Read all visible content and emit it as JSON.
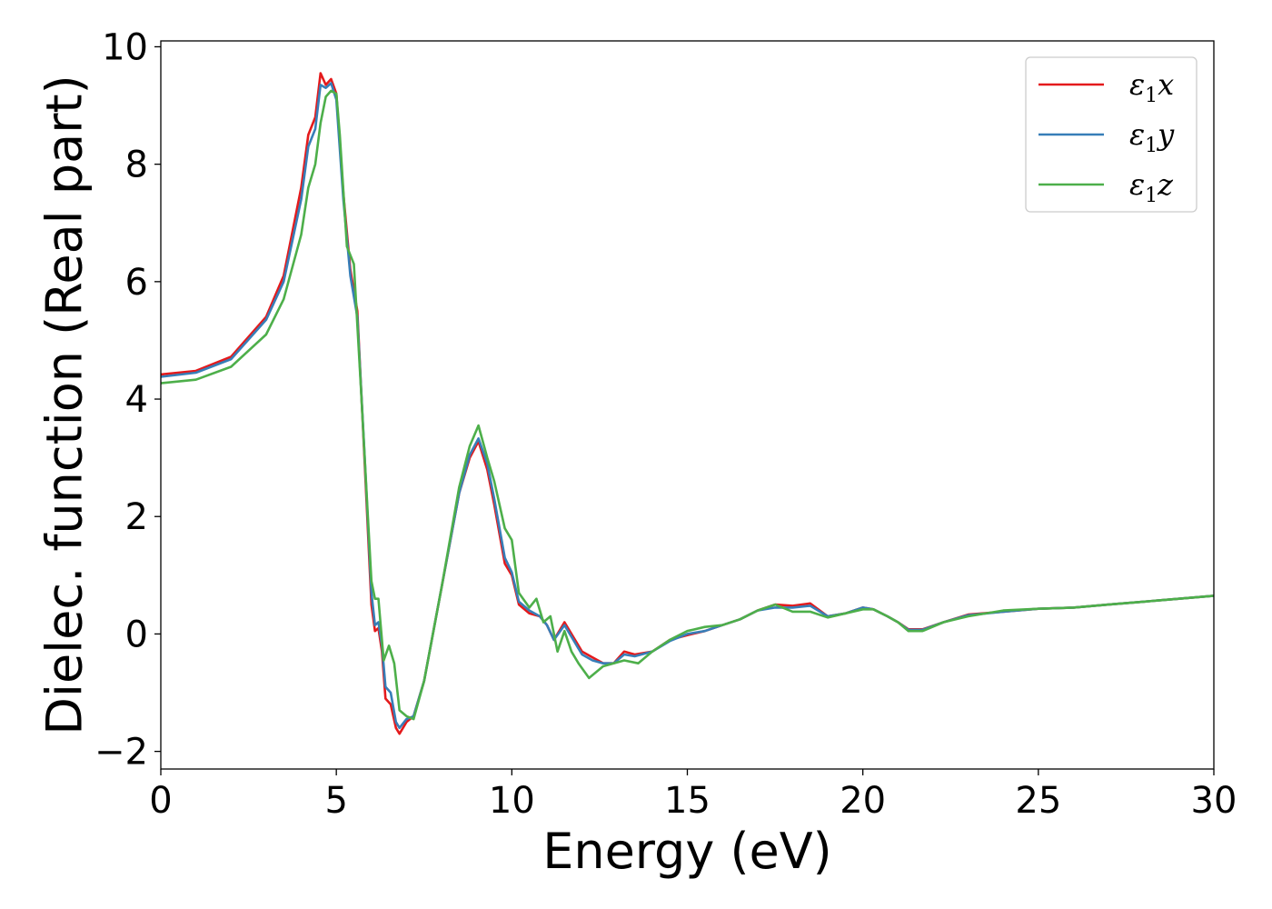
{
  "chart_data": {
    "type": "line",
    "xlabel": "Energy (eV)",
    "ylabel": "Dielec. function (Real part)",
    "xlim": [
      0,
      30
    ],
    "ylim": [
      -2.3,
      10.1
    ],
    "xticks": [
      0,
      5,
      10,
      15,
      20,
      25,
      30
    ],
    "xtick_labels": [
      "0",
      "5",
      "10",
      "15",
      "20",
      "25",
      "30"
    ],
    "yticks": [
      -2,
      0,
      2,
      4,
      6,
      8,
      10
    ],
    "ytick_labels": [
      "−2",
      "0",
      "2",
      "4",
      "6",
      "8",
      "10"
    ],
    "grid": false,
    "legend_position": "top-right",
    "series": [
      {
        "name": "ε1x",
        "name_base": "ε",
        "name_sub": "1",
        "name_suffix": "x",
        "color": "#e41a1c",
        "points": [
          [
            0,
            4.42
          ],
          [
            1,
            4.48
          ],
          [
            2,
            4.72
          ],
          [
            3,
            5.4
          ],
          [
            3.5,
            6.1
          ],
          [
            4,
            7.6
          ],
          [
            4.2,
            8.5
          ],
          [
            4.4,
            8.8
          ],
          [
            4.55,
            9.55
          ],
          [
            4.7,
            9.35
          ],
          [
            4.85,
            9.45
          ],
          [
            5,
            9.2
          ],
          [
            5.2,
            7.5
          ],
          [
            5.4,
            6.2
          ],
          [
            5.6,
            5.5
          ],
          [
            5.8,
            3.0
          ],
          [
            6.0,
            0.5
          ],
          [
            6.1,
            0.05
          ],
          [
            6.2,
            0.1
          ],
          [
            6.3,
            -0.3
          ],
          [
            6.4,
            -1.1
          ],
          [
            6.55,
            -1.2
          ],
          [
            6.7,
            -1.6
          ],
          [
            6.8,
            -1.7
          ],
          [
            7.0,
            -1.5
          ],
          [
            7.2,
            -1.4
          ],
          [
            7.5,
            -0.8
          ],
          [
            8.0,
            0.8
          ],
          [
            8.5,
            2.4
          ],
          [
            8.8,
            3.0
          ],
          [
            9.05,
            3.28
          ],
          [
            9.3,
            2.8
          ],
          [
            9.5,
            2.2
          ],
          [
            9.8,
            1.2
          ],
          [
            10.0,
            1.0
          ],
          [
            10.2,
            0.5
          ],
          [
            10.5,
            0.35
          ],
          [
            10.8,
            0.3
          ],
          [
            11.0,
            0.15
          ],
          [
            11.2,
            -0.1
          ],
          [
            11.5,
            0.2
          ],
          [
            11.8,
            -0.1
          ],
          [
            12.0,
            -0.3
          ],
          [
            12.3,
            -0.4
          ],
          [
            12.6,
            -0.5
          ],
          [
            12.9,
            -0.5
          ],
          [
            13.2,
            -0.3
          ],
          [
            13.5,
            -0.35
          ],
          [
            14,
            -0.3
          ],
          [
            14.5,
            -0.1
          ],
          [
            15,
            -0.02
          ],
          [
            15.5,
            0.05
          ],
          [
            16,
            0.15
          ],
          [
            16.5,
            0.25
          ],
          [
            17,
            0.4
          ],
          [
            17.5,
            0.5
          ],
          [
            18,
            0.48
          ],
          [
            18.5,
            0.52
          ],
          [
            19,
            0.3
          ],
          [
            19.5,
            0.35
          ],
          [
            20,
            0.45
          ],
          [
            20.3,
            0.42
          ],
          [
            20.7,
            0.3
          ],
          [
            21,
            0.2
          ],
          [
            21.3,
            0.08
          ],
          [
            21.7,
            0.08
          ],
          [
            22.3,
            0.2
          ],
          [
            23,
            0.33
          ],
          [
            24,
            0.38
          ],
          [
            25,
            0.43
          ],
          [
            26,
            0.45
          ],
          [
            27,
            0.5
          ],
          [
            28,
            0.55
          ],
          [
            29,
            0.6
          ],
          [
            30,
            0.65
          ]
        ]
      },
      {
        "name": "ε1y",
        "name_base": "ε",
        "name_sub": "1",
        "name_suffix": "y",
        "color": "#377eb8",
        "points": [
          [
            0,
            4.38
          ],
          [
            1,
            4.45
          ],
          [
            2,
            4.68
          ],
          [
            3,
            5.35
          ],
          [
            3.5,
            6.0
          ],
          [
            4,
            7.4
          ],
          [
            4.2,
            8.3
          ],
          [
            4.4,
            8.6
          ],
          [
            4.55,
            9.35
          ],
          [
            4.7,
            9.3
          ],
          [
            4.85,
            9.38
          ],
          [
            5,
            9.1
          ],
          [
            5.2,
            7.4
          ],
          [
            5.4,
            6.1
          ],
          [
            5.6,
            5.4
          ],
          [
            5.8,
            3.1
          ],
          [
            6.0,
            0.7
          ],
          [
            6.1,
            0.15
          ],
          [
            6.2,
            0.2
          ],
          [
            6.3,
            -0.2
          ],
          [
            6.4,
            -0.9
          ],
          [
            6.55,
            -1.0
          ],
          [
            6.7,
            -1.5
          ],
          [
            6.8,
            -1.6
          ],
          [
            7.0,
            -1.45
          ],
          [
            7.2,
            -1.4
          ],
          [
            7.5,
            -0.8
          ],
          [
            8.0,
            0.8
          ],
          [
            8.5,
            2.4
          ],
          [
            8.8,
            3.05
          ],
          [
            9.05,
            3.33
          ],
          [
            9.3,
            2.9
          ],
          [
            9.5,
            2.3
          ],
          [
            9.8,
            1.3
          ],
          [
            10.0,
            1.05
          ],
          [
            10.2,
            0.55
          ],
          [
            10.5,
            0.4
          ],
          [
            10.8,
            0.3
          ],
          [
            11.0,
            0.15
          ],
          [
            11.2,
            -0.1
          ],
          [
            11.5,
            0.15
          ],
          [
            11.8,
            -0.15
          ],
          [
            12.0,
            -0.35
          ],
          [
            12.3,
            -0.45
          ],
          [
            12.6,
            -0.5
          ],
          [
            12.9,
            -0.5
          ],
          [
            13.2,
            -0.35
          ],
          [
            13.5,
            -0.38
          ],
          [
            14,
            -0.3
          ],
          [
            14.5,
            -0.12
          ],
          [
            15,
            0.0
          ],
          [
            15.5,
            0.05
          ],
          [
            16,
            0.15
          ],
          [
            16.5,
            0.25
          ],
          [
            17,
            0.4
          ],
          [
            17.5,
            0.45
          ],
          [
            18,
            0.45
          ],
          [
            18.5,
            0.48
          ],
          [
            19,
            0.3
          ],
          [
            19.5,
            0.35
          ],
          [
            20,
            0.45
          ],
          [
            20.3,
            0.42
          ],
          [
            20.7,
            0.3
          ],
          [
            21,
            0.2
          ],
          [
            21.3,
            0.07
          ],
          [
            21.7,
            0.07
          ],
          [
            22.3,
            0.2
          ],
          [
            23,
            0.32
          ],
          [
            24,
            0.38
          ],
          [
            25,
            0.43
          ],
          [
            26,
            0.45
          ],
          [
            27,
            0.5
          ],
          [
            28,
            0.55
          ],
          [
            29,
            0.6
          ],
          [
            30,
            0.65
          ]
        ]
      },
      {
        "name": "ε1z",
        "name_base": "ε",
        "name_sub": "1",
        "name_suffix": "z",
        "color": "#4daf4a",
        "points": [
          [
            0,
            4.27
          ],
          [
            1,
            4.33
          ],
          [
            2,
            4.55
          ],
          [
            3,
            5.1
          ],
          [
            3.5,
            5.7
          ],
          [
            4,
            6.8
          ],
          [
            4.2,
            7.6
          ],
          [
            4.4,
            8.0
          ],
          [
            4.55,
            8.7
          ],
          [
            4.7,
            9.15
          ],
          [
            4.85,
            9.25
          ],
          [
            5,
            9.2
          ],
          [
            5.1,
            8.5
          ],
          [
            5.3,
            6.6
          ],
          [
            5.5,
            6.3
          ],
          [
            5.7,
            4.2
          ],
          [
            5.9,
            2.0
          ],
          [
            6.0,
            0.9
          ],
          [
            6.1,
            0.6
          ],
          [
            6.2,
            0.6
          ],
          [
            6.35,
            -0.45
          ],
          [
            6.5,
            -0.2
          ],
          [
            6.65,
            -0.5
          ],
          [
            6.8,
            -1.3
          ],
          [
            7.0,
            -1.4
          ],
          [
            7.2,
            -1.45
          ],
          [
            7.5,
            -0.8
          ],
          [
            8.0,
            0.8
          ],
          [
            8.5,
            2.5
          ],
          [
            8.8,
            3.2
          ],
          [
            9.05,
            3.55
          ],
          [
            9.3,
            3.0
          ],
          [
            9.5,
            2.6
          ],
          [
            9.8,
            1.8
          ],
          [
            10.0,
            1.6
          ],
          [
            10.2,
            0.7
          ],
          [
            10.5,
            0.45
          ],
          [
            10.7,
            0.6
          ],
          [
            10.9,
            0.2
          ],
          [
            11.1,
            0.3
          ],
          [
            11.3,
            -0.3
          ],
          [
            11.5,
            0.05
          ],
          [
            11.7,
            -0.3
          ],
          [
            11.9,
            -0.5
          ],
          [
            12.2,
            -0.75
          ],
          [
            12.6,
            -0.55
          ],
          [
            12.9,
            -0.5
          ],
          [
            13.2,
            -0.45
          ],
          [
            13.6,
            -0.5
          ],
          [
            14,
            -0.3
          ],
          [
            14.5,
            -0.1
          ],
          [
            15,
            0.05
          ],
          [
            15.5,
            0.12
          ],
          [
            16,
            0.15
          ],
          [
            16.5,
            0.25
          ],
          [
            17,
            0.4
          ],
          [
            17.5,
            0.5
          ],
          [
            18,
            0.38
          ],
          [
            18.5,
            0.38
          ],
          [
            19,
            0.28
          ],
          [
            19.5,
            0.35
          ],
          [
            20,
            0.42
          ],
          [
            20.3,
            0.42
          ],
          [
            20.7,
            0.3
          ],
          [
            21,
            0.2
          ],
          [
            21.3,
            0.05
          ],
          [
            21.7,
            0.05
          ],
          [
            22.3,
            0.2
          ],
          [
            23,
            0.3
          ],
          [
            24,
            0.4
          ],
          [
            25,
            0.43
          ],
          [
            26,
            0.45
          ],
          [
            27,
            0.5
          ],
          [
            28,
            0.55
          ],
          [
            29,
            0.6
          ],
          [
            30,
            0.65
          ]
        ]
      }
    ]
  }
}
